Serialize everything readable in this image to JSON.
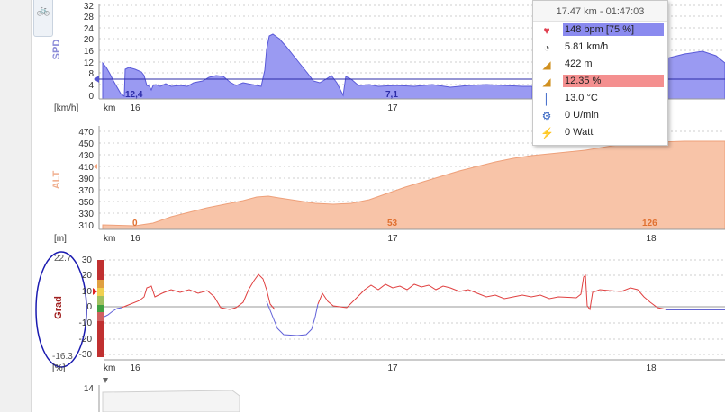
{
  "toolbar": {
    "icon": "cyclist-icon"
  },
  "speed_chart": {
    "axis_title": "SPD",
    "unit": "[km/h]",
    "y_ticks": [
      "32",
      "28",
      "24",
      "20",
      "16",
      "12",
      "8",
      "4",
      "0"
    ],
    "x_unit": "km",
    "x_ticks": [
      "16",
      "17"
    ],
    "markers": [
      "12,4",
      "7,1"
    ],
    "color": "#7b7bea"
  },
  "alt_chart": {
    "axis_title": "ALT",
    "unit": "[m]",
    "y_ticks": [
      "470",
      "450",
      "430",
      "410",
      "390",
      "370",
      "350",
      "330",
      "310"
    ],
    "x_unit": "km",
    "x_ticks": [
      "16",
      "17",
      "18"
    ],
    "markers": [
      "0",
      "53",
      "126"
    ],
    "color": "#f4a57e"
  },
  "grade_chart": {
    "axis_title": "Grad",
    "unit": "[%]",
    "max_label": "22.7",
    "min_label": "-16.3",
    "y_ticks": [
      "30",
      "20",
      "10",
      "0",
      "-10",
      "-20",
      "-30"
    ],
    "x_unit": "km",
    "x_ticks": [
      "16",
      "17",
      "18"
    ],
    "color": "#e04040"
  },
  "bottom_chart": {
    "first_tick": "14"
  },
  "tooltip": {
    "header": "17.47 km - 01:47:03",
    "rows": [
      {
        "icon": "heart-icon",
        "value": "148 bpm [75 %]"
      },
      {
        "icon": "speedometer-icon",
        "value": "5.81 km/h"
      },
      {
        "icon": "elevation-icon",
        "value": "422 m"
      },
      {
        "icon": "gradient-icon",
        "value": "12.35 %"
      },
      {
        "icon": "thermometer-icon",
        "value": "13.0 °C"
      },
      {
        "icon": "cadence-icon",
        "value": "0 U/min"
      },
      {
        "icon": "power-icon",
        "value": "0 Watt"
      }
    ]
  }
}
